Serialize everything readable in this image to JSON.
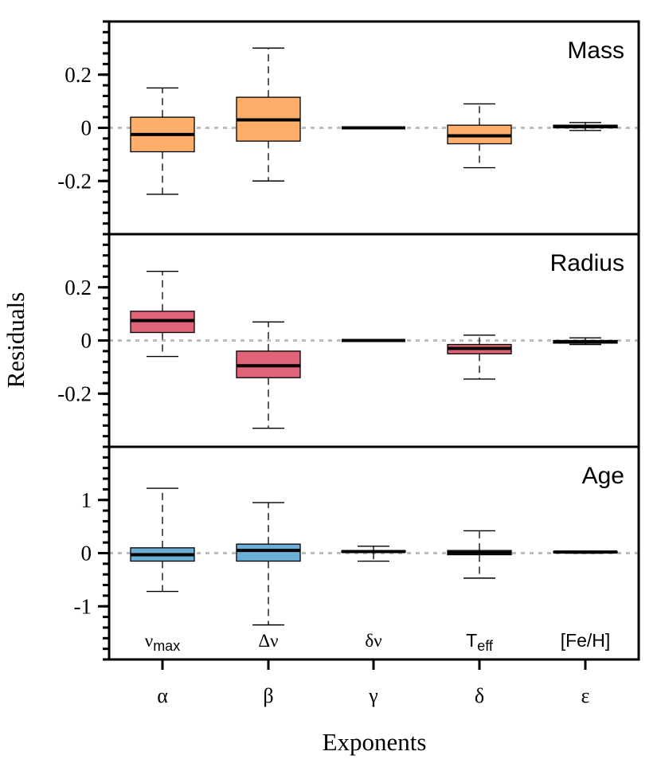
{
  "chart_data": {
    "type": "boxplot",
    "xlabel": "Exponents",
    "ylabel": "Residuals",
    "categories": [
      "α",
      "β",
      "γ",
      "δ",
      "ε"
    ],
    "category_annotations": [
      {
        "base": "ν",
        "sub": "max"
      },
      {
        "base": "Δν",
        "sub": ""
      },
      {
        "base": "δν",
        "sub": ""
      },
      {
        "base": "T",
        "sub": "eff"
      },
      {
        "base": "[Fe/H]",
        "sub": ""
      }
    ],
    "reference_line": 0,
    "panels": [
      {
        "title": "Mass",
        "ylim": [
          -0.4,
          0.4
        ],
        "ticks": [
          -0.2,
          0,
          0.2
        ],
        "tick_labels": [
          "-0.2",
          "0",
          "0.2"
        ],
        "minor_step": 0.04,
        "color": "#fdae6b",
        "boxes": [
          {
            "min": -0.25,
            "q1": -0.09,
            "median": -0.025,
            "q3": 0.04,
            "max": 0.15
          },
          {
            "min": -0.2,
            "q1": -0.05,
            "median": 0.03,
            "q3": 0.115,
            "max": 0.3
          },
          {
            "min": 0.0,
            "q1": 0.0,
            "median": 0.0,
            "q3": 0.0,
            "max": 0.0
          },
          {
            "min": -0.15,
            "q1": -0.06,
            "median": -0.03,
            "q3": 0.01,
            "max": 0.09
          },
          {
            "min": -0.01,
            "q1": 0.0,
            "median": 0.005,
            "q3": 0.01,
            "max": 0.02
          }
        ]
      },
      {
        "title": "Radius",
        "ylim": [
          -0.4,
          0.4
        ],
        "ticks": [
          -0.2,
          0,
          0.2
        ],
        "tick_labels": [
          "-0.2",
          "0",
          "0.2"
        ],
        "minor_step": 0.04,
        "color": "#e06377",
        "boxes": [
          {
            "min": -0.06,
            "q1": 0.03,
            "median": 0.075,
            "q3": 0.11,
            "max": 0.26
          },
          {
            "min": -0.33,
            "q1": -0.14,
            "median": -0.095,
            "q3": -0.04,
            "max": 0.07
          },
          {
            "min": 0.0,
            "q1": 0.0,
            "median": 0.0,
            "q3": 0.0,
            "max": 0.0
          },
          {
            "min": -0.145,
            "q1": -0.05,
            "median": -0.03,
            "q3": -0.015,
            "max": 0.02
          },
          {
            "min": -0.015,
            "q1": -0.01,
            "median": -0.005,
            "q3": 0.0,
            "max": 0.01
          }
        ]
      },
      {
        "title": "Age",
        "ylim": [
          -2,
          2
        ],
        "ticks": [
          -1,
          0,
          1
        ],
        "tick_labels": [
          "-1",
          "0",
          "1"
        ],
        "minor_step": 0.2,
        "color": "#6baed6",
        "boxes": [
          {
            "min": -0.72,
            "q1": -0.15,
            "median": -0.03,
            "q3": 0.1,
            "max": 1.22
          },
          {
            "min": -1.35,
            "q1": -0.15,
            "median": 0.05,
            "q3": 0.17,
            "max": 0.95
          },
          {
            "min": -0.15,
            "q1": 0.02,
            "median": 0.03,
            "q3": 0.04,
            "max": 0.13
          },
          {
            "min": -0.47,
            "q1": -0.03,
            "median": 0.01,
            "q3": 0.05,
            "max": 0.42
          },
          {
            "min": 0.0,
            "q1": 0.01,
            "median": 0.02,
            "q3": 0.03,
            "max": 0.035
          }
        ]
      }
    ]
  }
}
